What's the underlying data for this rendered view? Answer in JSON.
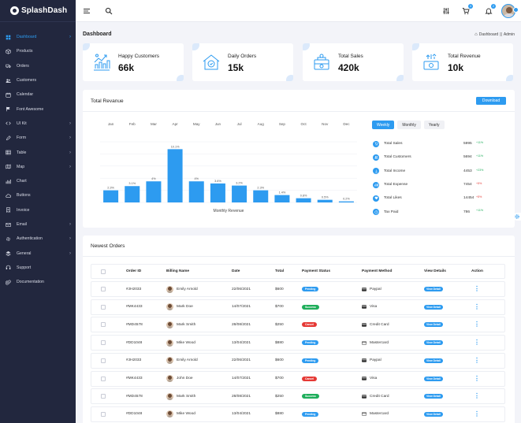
{
  "brand": {
    "name": "SplashDash"
  },
  "colors": {
    "accent": "#2d9bf0",
    "sidebar": "#22273e",
    "success": "#1fae5b",
    "danger": "#e53935"
  },
  "sidebar": {
    "items": [
      {
        "label": "Dashboard",
        "icon": "dashboard-icon",
        "active": true,
        "chevron": true
      },
      {
        "label": "Products",
        "icon": "box-icon",
        "chevron": false
      },
      {
        "label": "Orders",
        "icon": "truck-icon",
        "chevron": false
      },
      {
        "label": "Customers",
        "icon": "users-icon",
        "chevron": false
      },
      {
        "label": "Calendar",
        "icon": "calendar-icon",
        "chevron": false
      },
      {
        "label": "Font Awesome",
        "icon": "flag-icon",
        "chevron": false
      },
      {
        "label": "UI Kit",
        "icon": "code-icon",
        "chevron": true
      },
      {
        "label": "Form",
        "icon": "pen-icon",
        "chevron": true
      },
      {
        "label": "Table",
        "icon": "table-icon",
        "chevron": true
      },
      {
        "label": "Map",
        "icon": "map-icon",
        "chevron": true
      },
      {
        "label": "Chart",
        "icon": "chart-icon",
        "chevron": false
      },
      {
        "label": "Buttons",
        "icon": "cloud-icon",
        "chevron": false
      },
      {
        "label": "Invoice",
        "icon": "invoice-icon",
        "chevron": false
      },
      {
        "label": "Email",
        "icon": "email-icon",
        "chevron": true
      },
      {
        "label": "Authentication",
        "icon": "gear-icon",
        "chevron": true
      },
      {
        "label": "General",
        "icon": "layers-icon",
        "chevron": true
      },
      {
        "label": "Support",
        "icon": "support-icon",
        "chevron": false
      },
      {
        "label": "Documentation",
        "icon": "paperclip-icon",
        "chevron": false
      }
    ]
  },
  "topbar": {
    "cart_badge": "3",
    "notification_badge": "2"
  },
  "page": {
    "title": "Dashboard",
    "breadcrumb": {
      "current": "Dashboard",
      "separator": "||",
      "parent": "Admin"
    }
  },
  "stats": [
    {
      "label": "Happy Customers",
      "value": "66k",
      "icon": "happy-customers-icon"
    },
    {
      "label": "Daily Orders",
      "value": "15k",
      "icon": "daily-orders-icon"
    },
    {
      "label": "Total Sales",
      "value": "420k",
      "icon": "total-sales-icon"
    },
    {
      "label": "Total Revenue",
      "value": "10k",
      "icon": "total-revenue-icon"
    }
  ],
  "revenue": {
    "title": "Total Revanue",
    "download_label": "Download",
    "tabs": [
      {
        "label": "Weekly",
        "active": true
      },
      {
        "label": "Monthly",
        "active": false
      },
      {
        "label": "Yearly",
        "active": false
      }
    ],
    "metrics": [
      {
        "name": "Total Sales",
        "value": "5995",
        "change": "+11%",
        "trend": "up",
        "icon": "cart-icon"
      },
      {
        "name": "Total Customers",
        "value": "5694",
        "change": "+11%",
        "trend": "up",
        "icon": "users-icon"
      },
      {
        "name": "Total Income",
        "value": "4453",
        "change": "+23%",
        "trend": "up",
        "icon": "download-icon"
      },
      {
        "name": "Total Expense",
        "value": "7454",
        "change": "+5%",
        "trend": "down",
        "icon": "chart-icon"
      },
      {
        "name": "Total Likes",
        "value": "14454",
        "change": "+5%",
        "trend": "down",
        "icon": "heart-icon"
      },
      {
        "name": "Tax Paid",
        "value": "786",
        "change": "+11%",
        "trend": "up",
        "icon": "clock-icon"
      }
    ]
  },
  "chart_data": {
    "type": "bar",
    "categories": [
      "Jan",
      "Feb",
      "Mar",
      "Apr",
      "May",
      "Jun",
      "Jul",
      "Aug",
      "Sep",
      "Oct",
      "Nov",
      "Dec"
    ],
    "values": [
      2.3,
      3.1,
      4.0,
      10.1,
      4.0,
      3.6,
      3.2,
      2.3,
      1.4,
      0.8,
      0.5,
      0.2
    ],
    "data_labels": [
      "2.3%",
      "3.1%",
      "4%",
      "10.1%",
      "4%",
      "3.6%",
      "3.2%",
      "2.3%",
      "1.4%",
      "0.8%",
      "0.5%",
      "0.2%"
    ],
    "xlabel": "Monthly Revenue",
    "ylabel": "",
    "ylim": [
      0,
      11.5
    ],
    "grid": true,
    "color": "#2d9bf0"
  },
  "orders": {
    "title": "Newest Orders",
    "columns": [
      "Order ID",
      "Billing Name",
      "Date",
      "Total",
      "Payment Status",
      "Payment Method",
      "View Details",
      "Action"
    ],
    "view_label": "View Detail",
    "rows": [
      {
        "id": "#JH2033",
        "name": "Emily Arnold",
        "date": "22/06/2021",
        "total": "$600",
        "status": "Pending",
        "status_type": "pending",
        "method": "Paypal",
        "method_icon": "paypal-icon"
      },
      {
        "id": "#MK4433",
        "name": "Mark Doe",
        "date": "14/07/2021",
        "total": "$700",
        "status": "Success",
        "status_type": "success",
        "method": "Visa",
        "method_icon": "visa-icon"
      },
      {
        "id": "#MD4578",
        "name": "Mark Smith",
        "date": "28/08/2021",
        "total": "$250",
        "status": "Cancel",
        "status_type": "cancel",
        "method": "Credit Card",
        "method_icon": "credit-card-icon"
      },
      {
        "id": "#DD1048",
        "name": "Mike Wood",
        "date": "13/04/2021",
        "total": "$880",
        "status": "Pending",
        "status_type": "pending",
        "method": "Mastercard",
        "method_icon": "mastercard-icon"
      },
      {
        "id": "#JH2033",
        "name": "Emily Arnold",
        "date": "22/06/2021",
        "total": "$600",
        "status": "Pending",
        "status_type": "pending",
        "method": "Paypal",
        "method_icon": "paypal-icon"
      },
      {
        "id": "#MK4433",
        "name": "John Doe",
        "date": "14/07/2021",
        "total": "$700",
        "status": "Cancel",
        "status_type": "cancel",
        "method": "Visa",
        "method_icon": "visa-icon"
      },
      {
        "id": "#MD4578",
        "name": "Mark Smith",
        "date": "28/08/2021",
        "total": "$250",
        "status": "Success",
        "status_type": "success",
        "method": "Credit Card",
        "method_icon": "credit-card-icon"
      },
      {
        "id": "#DD1048",
        "name": "Mike Wood",
        "date": "13/04/2021",
        "total": "$880",
        "status": "Pending",
        "status_type": "pending",
        "method": "Mastercard",
        "method_icon": "mastercard-icon"
      }
    ]
  }
}
